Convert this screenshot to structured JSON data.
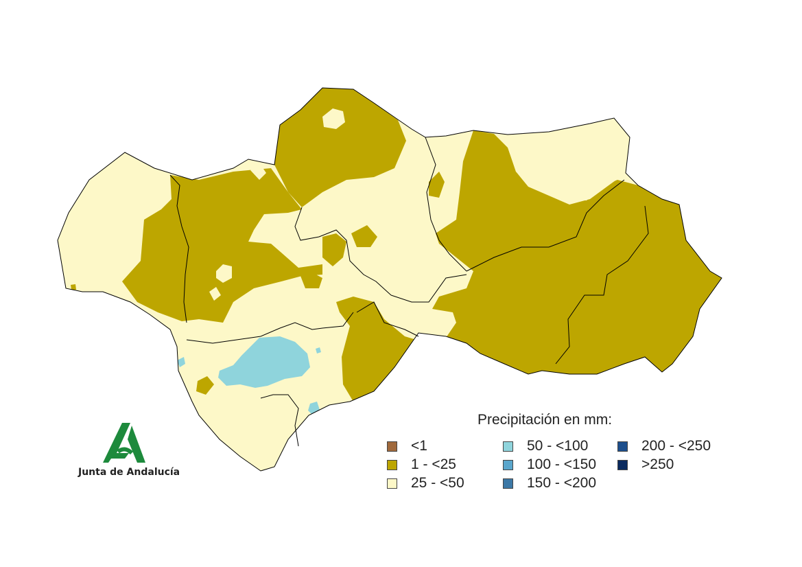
{
  "map": {
    "legend": {
      "title": "Precipitación en mm:",
      "items": [
        {
          "label": "<1",
          "color": "#a0693c"
        },
        {
          "label": "1 - <25",
          "color": "#bda600"
        },
        {
          "label": "25 - <50",
          "color": "#fdf8c8"
        },
        {
          "label": "50 - <100",
          "color": "#8fd4dc"
        },
        {
          "label": "100 - <150",
          "color": "#5aa6cc"
        },
        {
          "label": "150 - <200",
          "color": "#3c78a6"
        },
        {
          "label": "200 - <250",
          "color": "#1d4f8c"
        },
        {
          "label": ">250",
          "color": "#0a2a5e"
        }
      ]
    },
    "logo": {
      "text": "Junta de Andalucía",
      "color": "#1d8a3c"
    }
  }
}
